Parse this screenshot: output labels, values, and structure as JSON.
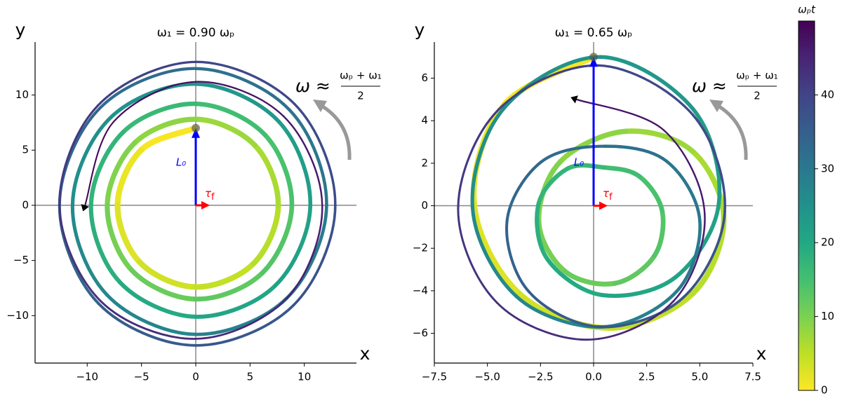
{
  "chart_data": [
    {
      "type": "line",
      "title": "ω₁ = 0.90 ωₚ",
      "xlabel": "x",
      "ylabel": "y",
      "annotation": {
        "lhs": "ω ≈",
        "numerator": "ωₚ + ω₁",
        "denominator": "2"
      },
      "vector_labels": {
        "L": "L₀",
        "tau": "τ",
        "tau_sub": "f"
      },
      "xlim": [
        -14.8,
        14.8
      ],
      "ylim": [
        -14.3,
        14.8
      ],
      "xticks": [
        {
          "value": -10,
          "label": "−10"
        },
        {
          "value": -5,
          "label": "−5"
        },
        0,
        5,
        10
      ],
      "yticks": [
        {
          "value": -10,
          "label": "−10"
        },
        {
          "value": -5,
          "label": "−5"
        },
        0,
        5,
        10
      ],
      "zero_lines": true,
      "series": [
        {
          "x": [
            0,
            -5.02,
            -7.2,
            -5.16,
            0,
            5.3,
            7.6,
            5.44,
            0,
            -5.64,
            -8.15,
            -5.89,
            0,
            6.13,
            8.85,
            6.38,
            0,
            -6.66,
            -9.65,
            -6.98,
            0,
            7.3,
            10.55,
            7.62,
            0,
            -7.9,
            -11.35,
            -8.15,
            0,
            8.4,
            12.05,
            8.64,
            0,
            -8.82,
            -12.55,
            -8.93,
            0,
            9.03,
            12.85,
            9.14,
            0,
            -9.03,
            -12.55,
            -8.72,
            0,
            8.4,
            11.65,
            8.08,
            0,
            -7.57,
            -10.2
          ],
          "y": [
            7,
            5.02,
            0,
            -5.16,
            -7.4,
            -5.3,
            0,
            5.44,
            7.8,
            5.64,
            0,
            -5.89,
            -8.5,
            -6.13,
            0,
            6.38,
            9.2,
            6.66,
            0,
            -6.98,
            -10.1,
            -7.3,
            0,
            7.62,
            11,
            7.9,
            0,
            -8.15,
            -11.7,
            -8.4,
            0,
            8.64,
            12.4,
            8.82,
            0,
            -8.93,
            -12.7,
            -9.03,
            0,
            9.14,
            13,
            9.03,
            0,
            -8.72,
            -12.1,
            -8.4,
            0,
            8.08,
            11.2,
            7.57,
            0
          ],
          "t": [
            0,
            1,
            2,
            3,
            4,
            5,
            6,
            7,
            8,
            9,
            10,
            11,
            12,
            13,
            14,
            15,
            16,
            17,
            18,
            19,
            20,
            21,
            22,
            23,
            24,
            25,
            26,
            27,
            28,
            29,
            30,
            31,
            32,
            33,
            34,
            35,
            36,
            37,
            38,
            39,
            40,
            41,
            42,
            43,
            44,
            45,
            46,
            47,
            48,
            49,
            50
          ]
        }
      ]
    },
    {
      "type": "line",
      "title": "ω₁ = 0.65 ωₚ",
      "xlabel": "x",
      "ylabel": "y",
      "annotation": {
        "lhs": "ω ≈",
        "numerator": "ωₚ + ω₁",
        "denominator": "2"
      },
      "vector_labels": {
        "L": "L₀",
        "tau": "τ",
        "tau_sub": "f"
      },
      "xlim": [
        -7.5,
        7.5
      ],
      "ylim": [
        -7.4,
        7.7
      ],
      "xticks": [
        {
          "value": -7.5,
          "label": "−7.5"
        },
        {
          "value": -5,
          "label": "−5.0"
        },
        {
          "value": -2.5,
          "label": "−2.5"
        },
        {
          "value": 0,
          "label": "0.0"
        },
        2.5,
        {
          "value": 5,
          "label": "5.0"
        },
        7.5
      ],
      "yticks": [
        {
          "value": -6,
          "label": "−6"
        },
        {
          "value": -4,
          "label": "−4"
        },
        {
          "value": -2,
          "label": "−2"
        },
        0,
        2,
        4,
        6
      ],
      "zero_lines": true,
      "series": [
        {
          "x": [
            0,
            -4.23,
            -5.63,
            -3.5,
            0.75,
            4.65,
            6.13,
            4.67,
            1.5,
            -1.57,
            -2.58,
            -1.34,
            1,
            2.86,
            3.23,
            2.14,
            0.5,
            -1.24,
            -2.6,
            -2.17,
            0.4,
            3.86,
            5.9,
            4.69,
            0.3,
            -4.22,
            -5.7,
            -3.64,
            0.4,
            3.91,
            5,
            3.43,
            0.5,
            -2.47,
            -4.08,
            -3.04,
            0.35,
            4.24,
            6.18,
            4.66,
            0.2,
            -4.49,
            -6.38,
            -4.55,
            -0.3,
            3.76,
            5.23,
            3.31,
            -0.8
          ],
          "y": [
            7,
            4.73,
            0.13,
            -4.13,
            -5.75,
            -4.15,
            -0.63,
            2.55,
            3.5,
            2.07,
            -0.75,
            -3.09,
            -3.65,
            -2.36,
            -0.25,
            1.39,
            1.8,
            1.74,
            0.05,
            -2.52,
            -4.2,
            -3.36,
            0.15,
            4.54,
            7,
            4.59,
            -0.1,
            -4.26,
            -5.7,
            -4.03,
            -0.7,
            2.1,
            2.8,
            2.06,
            -0.75,
            -4.05,
            -5.7,
            -4.3,
            -0.25,
            4.29,
            6.6,
            4.51,
            -0.13,
            -4.56,
            -6.3,
            -4.49,
            -0.38,
            3.55,
            5
          ],
          "t": [
            0,
            1,
            2,
            3,
            4,
            5,
            6,
            7,
            8,
            9,
            10,
            11,
            12,
            13,
            14,
            15,
            16,
            17,
            18,
            19,
            20,
            21,
            22,
            23,
            24,
            25,
            26,
            27,
            28,
            29,
            30,
            31,
            32,
            33,
            34,
            35,
            36,
            37,
            38,
            39,
            40,
            41,
            42,
            43,
            44,
            45,
            46,
            47,
            48
          ]
        }
      ]
    }
  ],
  "colorbar": {
    "label": "ωₚt",
    "clim": [
      0,
      50
    ],
    "cticks": [
      0,
      10,
      20,
      30,
      40
    ],
    "colormap": "viridis_r"
  }
}
